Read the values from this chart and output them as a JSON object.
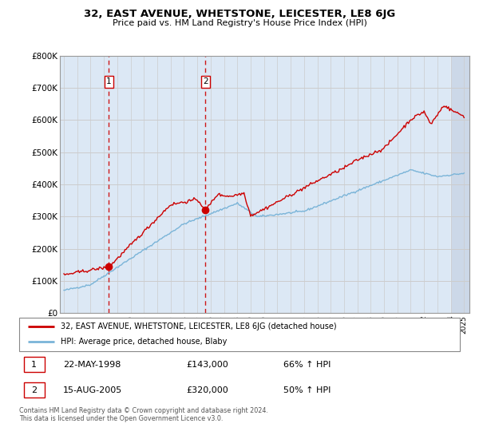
{
  "title": "32, EAST AVENUE, WHETSTONE, LEICESTER, LE8 6JG",
  "subtitle": "Price paid vs. HM Land Registry's House Price Index (HPI)",
  "ylim": [
    0,
    800000
  ],
  "yticks": [
    0,
    100000,
    200000,
    300000,
    400000,
    500000,
    600000,
    700000,
    800000
  ],
  "ytick_labels": [
    "£0",
    "£100K",
    "£200K",
    "£300K",
    "£400K",
    "£500K",
    "£600K",
    "£700K",
    "£800K"
  ],
  "purchase1_year": 1998.38,
  "purchase1_price": 143000,
  "purchase2_year": 2005.62,
  "purchase2_price": 320000,
  "legend_line1": "32, EAST AVENUE, WHETSTONE, LEICESTER, LE8 6JG (detached house)",
  "legend_line2": "HPI: Average price, detached house, Blaby",
  "purchase1_date": "22-MAY-1998",
  "purchase1_amount": "£143,000",
  "purchase1_hpi": "66% ↑ HPI",
  "purchase2_date": "15-AUG-2005",
  "purchase2_amount": "£320,000",
  "purchase2_hpi": "50% ↑ HPI",
  "footer": "Contains HM Land Registry data © Crown copyright and database right 2024.\nThis data is licensed under the Open Government Licence v3.0.",
  "hpi_color": "#7ab4d8",
  "price_color": "#cc0000",
  "grid_color": "#cccccc",
  "bg_color": "#dce8f5",
  "shade_between_color": "#dce8f5",
  "hatch_bg": "#ccd8e8",
  "dashed_color": "#cc0000",
  "box_color": "#cc0000"
}
